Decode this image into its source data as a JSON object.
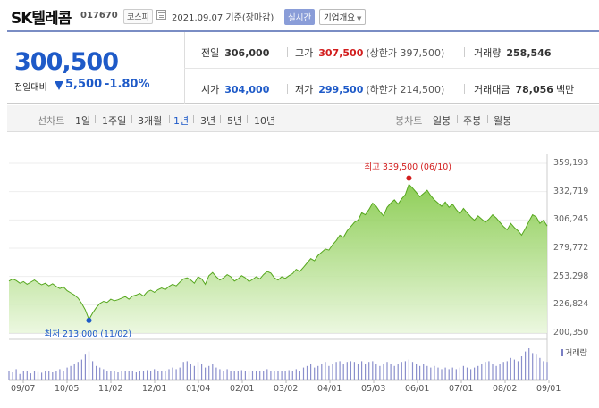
{
  "header": {
    "name": "SK텔레콤",
    "code": "017670",
    "market": "코스피",
    "date": "2021.09.07 기준(장마감)",
    "realtime": "실시간",
    "overview": "기업개요"
  },
  "summary": {
    "price": "300,500",
    "change_label": "전일대비",
    "change_value": "5,500",
    "change_pct": "-1.80%",
    "prev_close_label": "전일",
    "prev_close": "306,000",
    "high_label": "고가",
    "high": "307,500",
    "upper_limit": "(상한가 397,500)",
    "volume_label": "거래량",
    "volume": "258,546",
    "open_label": "시가",
    "open": "304,000",
    "low_label": "저가",
    "low": "299,500",
    "lower_limit": "(하한가 214,500)",
    "amount_label": "거래대금",
    "amount": "78,056",
    "amount_unit": "백만"
  },
  "tabs": {
    "line_label": "선차트",
    "line_periods": [
      "1일",
      "1주일",
      "3개월",
      "1년",
      "3년",
      "5년",
      "10년"
    ],
    "active": "1년",
    "candle_label": "봉차트",
    "candle_periods": [
      "일봉",
      "주봉",
      "월봉"
    ]
  },
  "colors": {
    "down": "#1e5ac8",
    "up": "#d21e1e",
    "area": "#8fd05a"
  },
  "chart_data": {
    "type": "area",
    "y_ticks": [
      "359,193",
      "332,719",
      "306,245",
      "279,772",
      "253,298",
      "226,824",
      "200,350"
    ],
    "ylim": [
      200350,
      359193
    ],
    "x_ticks": [
      "09/07",
      "10/05",
      "11/02",
      "12/01",
      "01/04",
      "02/01",
      "03/02",
      "04/01",
      "05/03",
      "06/01",
      "07/01",
      "08/02",
      "09/01"
    ],
    "max_label": "최고 339,500 (06/10)",
    "min_label": "최저 213,000 (11/02)",
    "max_value": 339500,
    "min_value": 213000,
    "max_index": 110,
    "min_index": 22,
    "volume_label": "거래량",
    "series": [
      {
        "name": "price",
        "values": [
          249000,
          251000,
          249500,
          247000,
          248500,
          246000,
          248000,
          250000,
          247500,
          245500,
          247000,
          244500,
          246500,
          244000,
          242000,
          243500,
          240000,
          238000,
          236000,
          233000,
          228000,
          222000,
          213000,
          219000,
          224000,
          228000,
          230000,
          229000,
          232000,
          230500,
          231500,
          233000,
          234500,
          232000,
          235000,
          236000,
          237500,
          235000,
          239000,
          240500,
          238500,
          241000,
          242500,
          241000,
          244000,
          246000,
          244500,
          248000,
          251000,
          252000,
          250000,
          247000,
          253000,
          251000,
          246000,
          254000,
          257000,
          253000,
          250000,
          252000,
          255000,
          253000,
          249000,
          251000,
          254000,
          252000,
          248500,
          250500,
          253000,
          251000,
          255000,
          258000,
          256500,
          252000,
          250000,
          253000,
          251500,
          254000,
          256000,
          260000,
          258000,
          262000,
          266000,
          270000,
          268000,
          273000,
          276000,
          279000,
          278000,
          283000,
          287000,
          292000,
          290000,
          296000,
          300000,
          304000,
          306000,
          313000,
          311000,
          316000,
          322000,
          319000,
          314000,
          310000,
          318000,
          322000,
          325000,
          321000,
          326000,
          330000,
          339500,
          336000,
          332000,
          328000,
          331000,
          334000,
          329000,
          325000,
          322000,
          319000,
          323000,
          318000,
          321000,
          316000,
          312000,
          317000,
          313000,
          309000,
          306000,
          310000,
          307000,
          304000,
          307000,
          311000,
          308000,
          304000,
          300000,
          297000,
          303000,
          299000,
          296000,
          292000,
          298000,
          305000,
          311000,
          309000,
          303000,
          306000,
          300500
        ]
      },
      {
        "name": "volume",
        "values": [
          0.3,
          0.25,
          0.35,
          0.2,
          0.3,
          0.28,
          0.22,
          0.3,
          0.26,
          0.24,
          0.28,
          0.3,
          0.25,
          0.3,
          0.35,
          0.3,
          0.4,
          0.45,
          0.5,
          0.55,
          0.65,
          0.8,
          0.9,
          0.6,
          0.45,
          0.4,
          0.35,
          0.3,
          0.28,
          0.3,
          0.25,
          0.3,
          0.28,
          0.3,
          0.3,
          0.25,
          0.3,
          0.28,
          0.32,
          0.3,
          0.35,
          0.3,
          0.28,
          0.3,
          0.35,
          0.4,
          0.35,
          0.4,
          0.55,
          0.6,
          0.5,
          0.45,
          0.55,
          0.5,
          0.4,
          0.45,
          0.5,
          0.4,
          0.35,
          0.3,
          0.35,
          0.3,
          0.28,
          0.3,
          0.32,
          0.3,
          0.28,
          0.3,
          0.3,
          0.28,
          0.3,
          0.35,
          0.3,
          0.28,
          0.3,
          0.28,
          0.3,
          0.32,
          0.3,
          0.35,
          0.3,
          0.4,
          0.45,
          0.5,
          0.4,
          0.45,
          0.5,
          0.55,
          0.45,
          0.5,
          0.55,
          0.6,
          0.5,
          0.55,
          0.6,
          0.55,
          0.5,
          0.6,
          0.5,
          0.55,
          0.6,
          0.5,
          0.45,
          0.5,
          0.55,
          0.5,
          0.45,
          0.5,
          0.55,
          0.6,
          0.65,
          0.55,
          0.5,
          0.45,
          0.5,
          0.45,
          0.4,
          0.45,
          0.4,
          0.35,
          0.4,
          0.35,
          0.4,
          0.35,
          0.4,
          0.45,
          0.4,
          0.35,
          0.4,
          0.45,
          0.5,
          0.55,
          0.6,
          0.5,
          0.45,
          0.5,
          0.55,
          0.6,
          0.7,
          0.65,
          0.6,
          0.75,
          0.9,
          1.0,
          0.85,
          0.8,
          0.7,
          0.6,
          0.55
        ]
      }
    ]
  }
}
